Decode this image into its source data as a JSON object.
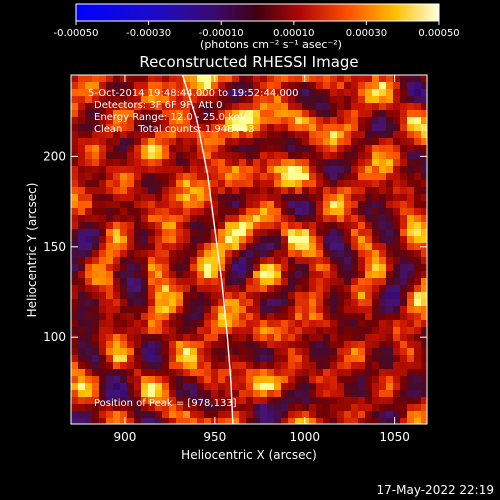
{
  "colorbar": {
    "ticks": [
      "-0.00050",
      "-0.00030",
      "-0.00010",
      "0.00010",
      "0.00030",
      "0.00050"
    ],
    "tick_values": [
      -0.0005,
      -0.0003,
      -0.0001,
      0.0001,
      0.0003,
      0.0005
    ],
    "range": [
      -0.0005,
      0.0005
    ],
    "units_label": "(photons cm⁻² s⁻¹ asec⁻²)",
    "colormap": [
      "#0000ff",
      "#2a0a8a",
      "#5a1a2a",
      "#b01010",
      "#ff4a00",
      "#ffb000",
      "#ffff60",
      "#ffffff"
    ]
  },
  "chart_data": {
    "type": "heatmap",
    "title": "Reconstructed RHESSI Image",
    "xlabel": "Heliocentric X (arcsec)",
    "ylabel": "Heliocentric Y (arcsec)",
    "xlim": [
      870,
      1068
    ],
    "ylim": [
      52,
      245
    ],
    "xticks": [
      900,
      950,
      1000,
      1050
    ],
    "yticks": [
      100,
      150,
      200
    ],
    "annotations": [
      "5-Oct-2014 19:48:44.000 to 19:52:44.000",
      "Detectors: 3F 6F 9F, Att 0",
      "Energy Range: 12.0 - 25.0 keV",
      "Clean     Total counts: 1.94E+03"
    ],
    "peak_label": "Position of Peak = [978,133]",
    "peak": [
      978,
      133
    ],
    "limb_curve": [
      [
        932,
        245
      ],
      [
        940,
        220
      ],
      [
        946,
        190
      ],
      [
        950,
        160
      ],
      [
        954,
        130
      ],
      [
        957,
        100
      ],
      [
        959,
        75
      ],
      [
        960,
        52
      ]
    ]
  },
  "footer": {
    "timestamp": "17-May-2022 22:19"
  }
}
